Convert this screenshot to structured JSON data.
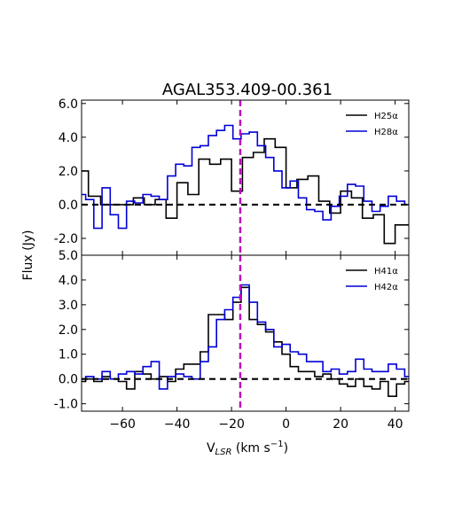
{
  "chart_data": {
    "type": "line",
    "title": "AGAL353.409-00.361",
    "ylabel": "Flux (Jy)",
    "xlabel_main": "V",
    "xlabel_sub": "LSR",
    "xlabel_units": " (km s",
    "xlabel_sup": "−1",
    "xlabel_close": ")",
    "xlim": [
      -75,
      45
    ],
    "xticks": [
      -60,
      -40,
      -20,
      0,
      20,
      40
    ],
    "xtick_labels": [
      "−60",
      "−40",
      "−20",
      "0",
      "20",
      "40"
    ],
    "vline_x": -16.8,
    "vline_color": "#bf00bf",
    "zero_line": 0,
    "panels": [
      {
        "name": "top",
        "ylim": [
          -3.0,
          6.2
        ],
        "yticks": [
          -2,
          0,
          2,
          4,
          6
        ],
        "ytick_labels": [
          "-2.0",
          "0.0",
          "2.0",
          "4.0",
          "6.0"
        ],
        "series": [
          {
            "name": "H25α",
            "color": "#000000",
            "x": [
              -75,
              -70,
              -66,
              -62,
              -58,
              -54,
              -50,
              -46,
              -42,
              -38,
              -34,
              -30,
              -26,
              -22,
              -18,
              -14,
              -10,
              -6,
              -2,
              2,
              6,
              10,
              14,
              18,
              22,
              26,
              30,
              34,
              38,
              42,
              45
            ],
            "y": [
              2.0,
              0.5,
              0.0,
              0.0,
              0.0,
              0.4,
              0.0,
              0.3,
              -0.8,
              1.3,
              0.6,
              2.7,
              2.4,
              2.7,
              0.8,
              2.8,
              3.1,
              3.9,
              3.4,
              1.0,
              1.5,
              1.7,
              0.2,
              -0.5,
              0.8,
              0.4,
              -0.8,
              -0.6,
              -2.3,
              -1.2,
              -1.2
            ]
          },
          {
            "name": "H28α",
            "color": "#0000d6",
            "x": [
              -75,
              -72,
              -69,
              -66,
              -63,
              -60,
              -57,
              -54,
              -51,
              -48,
              -45,
              -42,
              -39,
              -36,
              -33,
              -30,
              -27,
              -24,
              -21,
              -18,
              -15,
              -12,
              -9,
              -6,
              -3,
              0,
              3,
              6,
              9,
              12,
              15,
              18,
              21,
              24,
              27,
              30,
              33,
              36,
              39,
              42,
              45
            ],
            "y": [
              0.6,
              0.3,
              -1.4,
              1.0,
              -0.6,
              -1.4,
              0.2,
              0.1,
              0.6,
              0.5,
              0.3,
              1.7,
              2.4,
              2.3,
              3.4,
              3.5,
              4.1,
              4.4,
              4.7,
              3.9,
              4.2,
              4.3,
              3.5,
              2.8,
              2.0,
              1.0,
              1.4,
              0.4,
              -0.3,
              -0.4,
              -0.9,
              -0.1,
              0.5,
              1.2,
              1.1,
              0.2,
              -0.4,
              -0.1,
              0.5,
              0.2,
              0.0
            ]
          }
        ]
      },
      {
        "name": "bottom",
        "ylim": [
          -1.3,
          5.0
        ],
        "yticks": [
          -1,
          0,
          1,
          2,
          3,
          4,
          5
        ],
        "ytick_labels": [
          "-1.0",
          "0.0",
          "1.0",
          "2.0",
          "3.0",
          "4.0",
          "5.0"
        ],
        "series": [
          {
            "name": "H41α",
            "color": "#000000",
            "x": [
              -75,
              -72,
              -69,
              -66,
              -63,
              -60,
              -57,
              -54,
              -51,
              -48,
              -45,
              -42,
              -39,
              -36,
              -33,
              -30,
              -27,
              -24,
              -21,
              -18,
              -15,
              -12,
              -9,
              -6,
              -3,
              0,
              3,
              6,
              9,
              12,
              15,
              18,
              21,
              24,
              27,
              30,
              33,
              36,
              39,
              42,
              45
            ],
            "y": [
              -0.1,
              0.0,
              -0.1,
              0.1,
              0.0,
              -0.1,
              -0.4,
              0.3,
              0.2,
              0.0,
              0.1,
              -0.1,
              0.4,
              0.6,
              0.6,
              1.1,
              2.6,
              2.6,
              2.4,
              3.1,
              3.7,
              2.4,
              2.2,
              1.9,
              1.5,
              1.0,
              0.5,
              0.3,
              0.3,
              0.1,
              0.2,
              0.0,
              -0.2,
              -0.3,
              0.0,
              -0.3,
              -0.4,
              -0.1,
              -0.7,
              -0.2,
              -0.1
            ]
          },
          {
            "name": "H42α",
            "color": "#0000d6",
            "x": [
              -75,
              -72,
              -69,
              -66,
              -63,
              -60,
              -57,
              -54,
              -51,
              -48,
              -45,
              -42,
              -39,
              -36,
              -33,
              -30,
              -27,
              -24,
              -21,
              -18,
              -15,
              -12,
              -9,
              -6,
              -3,
              0,
              3,
              6,
              9,
              12,
              15,
              18,
              21,
              24,
              27,
              30,
              33,
              36,
              39,
              42,
              45
            ],
            "y": [
              0.0,
              0.1,
              0.0,
              0.3,
              0.0,
              0.2,
              0.3,
              0.2,
              0.5,
              0.7,
              -0.4,
              0.1,
              0.2,
              0.1,
              0.0,
              0.7,
              1.3,
              2.4,
              2.8,
              3.3,
              3.8,
              3.1,
              2.3,
              2.0,
              1.3,
              1.4,
              1.1,
              1.0,
              0.7,
              0.7,
              0.3,
              0.4,
              0.2,
              0.3,
              0.8,
              0.4,
              0.3,
              0.3,
              0.6,
              0.4,
              0.1
            ]
          }
        ]
      }
    ]
  }
}
